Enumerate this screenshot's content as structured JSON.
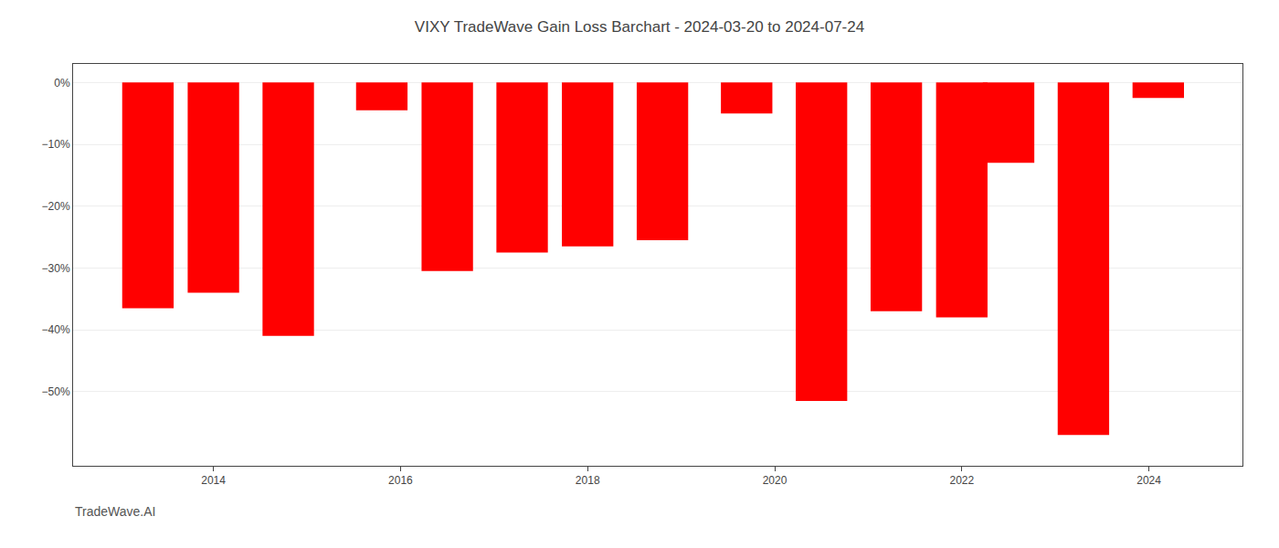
{
  "chart_data": {
    "type": "bar",
    "title": "VIXY TradeWave Gain Loss Barchart - 2024-03-20 to 2024-07-24",
    "x": [
      2013.3,
      2014.0,
      2014.8,
      2015.8,
      2016.5,
      2017.3,
      2018.0,
      2018.8,
      2019.7,
      2020.5,
      2021.3,
      2022.0,
      2022.5,
      2023.3,
      2024.1
    ],
    "values": [
      -36.5,
      -34.0,
      -41.0,
      -4.5,
      -30.5,
      -27.5,
      -26.5,
      -25.5,
      -5.0,
      -51.5,
      -37.0,
      -38.0,
      -13.0,
      -57.0,
      -2.5
    ],
    "color": "#ff0000",
    "xlim": [
      2012.5,
      2025.0
    ],
    "xticks": [
      2014,
      2016,
      2018,
      2020,
      2022,
      2024
    ],
    "ylim": [
      -62,
      3
    ],
    "yticks": [
      {
        "value": 0,
        "label": "0%"
      },
      {
        "value": -10,
        "label": "−10%"
      },
      {
        "value": -20,
        "label": "−20%"
      },
      {
        "value": -30,
        "label": "−30%"
      },
      {
        "value": -40,
        "label": "−40%"
      },
      {
        "value": -50,
        "label": "−50%"
      }
    ],
    "grid": true,
    "annotations": [
      "TradeWave.AI"
    ]
  }
}
